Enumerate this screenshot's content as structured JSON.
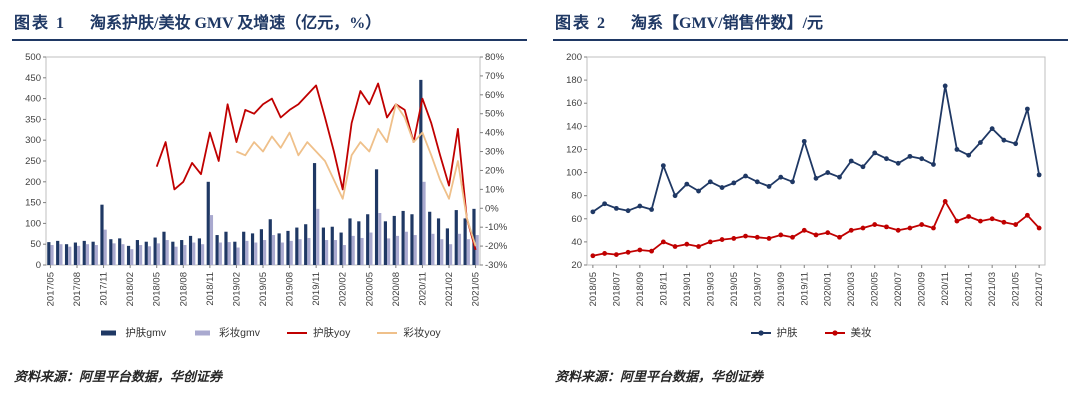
{
  "accent_colors": {
    "navy": "#1F3864",
    "light_purple": "#A9A9CF",
    "dark_red": "#C00000",
    "tan": "#EFC08A"
  },
  "panels": [
    {
      "label": "图表 1",
      "title": "淘系护肤/美妆 GMV 及增速（亿元，%）",
      "source": "资料来源：阿里平台数据，华创证券"
    },
    {
      "label": "图表 2",
      "title": "淘系【GMV/销售件数】/元",
      "source": "资料来源：阿里平台数据，华创证券"
    }
  ],
  "chart_data": [
    {
      "type": "bar",
      "subtype": "combo-bar-line-dual-axis",
      "title": "淘系护肤/美妆 GMV 及增速（亿元，%）",
      "x": [
        "2017/05",
        "2017/06",
        "2017/07",
        "2017/08",
        "2017/09",
        "2017/10",
        "2017/11",
        "2017/12",
        "2018/01",
        "2018/02",
        "2018/03",
        "2018/04",
        "2018/05",
        "2018/06",
        "2018/07",
        "2018/08",
        "2018/09",
        "2018/10",
        "2018/11",
        "2018/12",
        "2019/01",
        "2019/02",
        "2019/03",
        "2019/04",
        "2019/05",
        "2019/06",
        "2019/07",
        "2019/08",
        "2019/09",
        "2019/10",
        "2019/11",
        "2019/12",
        "2020/01",
        "2020/02",
        "2020/03",
        "2020/04",
        "2020/05",
        "2020/06",
        "2020/07",
        "2020/08",
        "2020/09",
        "2020/10",
        "2020/11",
        "2020/12",
        "2021/01",
        "2021/02",
        "2021/03",
        "2021/04",
        "2021/05"
      ],
      "x_tick_every": 3,
      "left_axis": {
        "min": 0,
        "max": 500,
        "step": 50,
        "label_format": "number",
        "unit": "亿元"
      },
      "right_axis": {
        "min": -30,
        "max": 80,
        "step": 10,
        "label_format": "percent",
        "unit": "%"
      },
      "bar_series": [
        {
          "name": "护肤gmv",
          "color": "#1F3864",
          "axis": "left",
          "values": [
            55,
            58,
            50,
            54,
            58,
            56,
            145,
            62,
            64,
            46,
            60,
            56,
            66,
            80,
            56,
            60,
            70,
            64,
            200,
            72,
            80,
            56,
            80,
            76,
            86,
            110,
            76,
            82,
            90,
            98,
            245,
            90,
            92,
            78,
            112,
            105,
            122,
            230,
            105,
            118,
            130,
            122,
            445,
            128,
            112,
            88,
            132,
            112,
            135
          ]
        },
        {
          "name": "彩妆gmv",
          "color": "#A9A9CF",
          "axis": "left",
          "values": [
            48,
            50,
            44,
            46,
            50,
            48,
            85,
            52,
            50,
            38,
            48,
            45,
            52,
            60,
            44,
            48,
            54,
            50,
            120,
            54,
            55,
            42,
            58,
            54,
            60,
            72,
            54,
            58,
            62,
            65,
            135,
            60,
            60,
            48,
            70,
            65,
            78,
            125,
            64,
            70,
            80,
            72,
            200,
            75,
            62,
            50,
            75,
            62,
            72
          ]
        }
      ],
      "line_series": [
        {
          "name": "护肤yoy",
          "color": "#C00000",
          "axis": "right",
          "marker": false,
          "values": [
            null,
            null,
            null,
            null,
            null,
            null,
            null,
            null,
            null,
            null,
            null,
            null,
            22,
            35,
            10,
            14,
            24,
            18,
            40,
            25,
            55,
            35,
            52,
            50,
            55,
            58,
            48,
            52,
            55,
            60,
            65,
            48,
            30,
            10,
            45,
            62,
            55,
            66,
            48,
            55,
            52,
            35,
            58,
            45,
            28,
            12,
            42,
            -5,
            -22
          ]
        },
        {
          "name": "彩妆yoy",
          "color": "#EFC08A",
          "axis": "right",
          "marker": false,
          "values": [
            null,
            null,
            null,
            null,
            null,
            null,
            null,
            null,
            null,
            null,
            null,
            null,
            null,
            null,
            null,
            null,
            null,
            null,
            null,
            null,
            null,
            30,
            28,
            35,
            30,
            38,
            32,
            40,
            28,
            35,
            30,
            25,
            15,
            5,
            28,
            35,
            30,
            42,
            35,
            55,
            48,
            35,
            40,
            28,
            15,
            5,
            25,
            -5,
            -20
          ]
        }
      ]
    },
    {
      "type": "line",
      "title": "淘系【GMV/销售件数】/元",
      "x": [
        "2018/05",
        "2018/06",
        "2018/07",
        "2018/08",
        "2018/09",
        "2018/10",
        "2018/11",
        "2018/12",
        "2019/01",
        "2019/02",
        "2019/03",
        "2019/04",
        "2019/05",
        "2019/06",
        "2019/07",
        "2019/08",
        "2019/09",
        "2019/10",
        "2019/11",
        "2019/12",
        "2020/01",
        "2020/02",
        "2020/03",
        "2020/04",
        "2020/05",
        "2020/06",
        "2020/07",
        "2020/08",
        "2020/09",
        "2020/10",
        "2020/11",
        "2020/12",
        "2021/01",
        "2021/02",
        "2021/03",
        "2021/04",
        "2021/05",
        "2021/06",
        "2021/07"
      ],
      "x_tick_every": 2,
      "left_axis": {
        "min": 20,
        "max": 200,
        "step": 20,
        "label_format": "number",
        "unit": "元"
      },
      "line_series": [
        {
          "name": "护肤",
          "color": "#1F3864",
          "axis": "left",
          "marker": true,
          "values": [
            66,
            73,
            69,
            67,
            71,
            68,
            106,
            80,
            90,
            84,
            92,
            87,
            91,
            97,
            92,
            88,
            96,
            92,
            127,
            95,
            100,
            96,
            110,
            105,
            117,
            112,
            108,
            114,
            112,
            107,
            175,
            120,
            115,
            126,
            138,
            128,
            125,
            155,
            98
          ]
        },
        {
          "name": "美妆",
          "color": "#C00000",
          "axis": "left",
          "marker": true,
          "values": [
            28,
            30,
            29,
            31,
            33,
            32,
            40,
            36,
            38,
            36,
            40,
            42,
            43,
            45,
            44,
            43,
            46,
            44,
            50,
            46,
            48,
            44,
            50,
            52,
            55,
            53,
            50,
            52,
            55,
            52,
            75,
            58,
            62,
            58,
            60,
            57,
            55,
            63,
            52
          ]
        }
      ]
    }
  ]
}
